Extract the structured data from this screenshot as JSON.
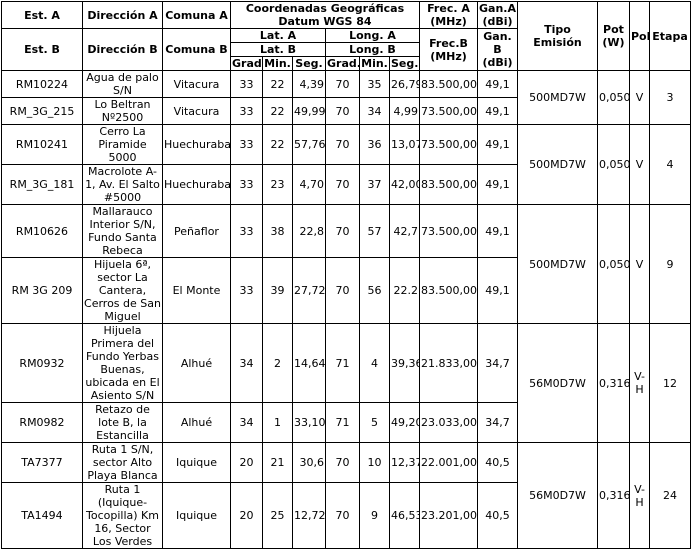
{
  "headers": {
    "est_a": "Est. A",
    "dir_a": "Dirección A",
    "comuna_a": "Comuna A",
    "coords": "Coordenadas Geográficas Datum WGS 84",
    "frec_a": "Frec. A (MHz)",
    "gan_a": "Gan.A (dBi)",
    "tipo": "Tipo Emisión",
    "pot": "Pot (W)",
    "pol": "Pol",
    "etapa": "Etapa",
    "est_b": "Est. B",
    "dir_b": "Dirección B",
    "comuna_b": "Comuna B",
    "lat_a": "Lat. A",
    "long_a": "Long. A",
    "frec_b": "Frec.B (MHz)",
    "gan_b": "Gan. B (dBi)",
    "lat_b": "Lat. B",
    "long_b": "Long. B",
    "units": [
      "Grad.",
      "Min.",
      "Seg.",
      "Grad.",
      "Min.",
      "Seg."
    ]
  },
  "groups": [
    {
      "tipo": "500MD7W",
      "pot": "0,050",
      "pol": "V",
      "etapa": "3",
      "rows": [
        [
          "RM10224",
          "Agua de palo S/N",
          "Vitacura",
          "33",
          "22",
          "4,39",
          "70",
          "35",
          "26,79",
          "83.500,00",
          "49,1"
        ],
        [
          "RM_3G_215",
          "Lo Beltran Nº2500",
          "Vitacura",
          "33",
          "22",
          "49,99",
          "70",
          "34",
          "4,99",
          "73.500,00",
          "49,1"
        ]
      ]
    },
    {
      "tipo": "500MD7W",
      "pot": "0,050",
      "pol": "V",
      "etapa": "4",
      "rows": [
        [
          "RM10241",
          "Cerro La Piramide 5000",
          "Huechuraba",
          "33",
          "22",
          "57,76",
          "70",
          "36",
          "13,07",
          "73.500,00",
          "49,1"
        ],
        [
          "RM_3G_181",
          "Macrolote A-1, Av. El Salto #5000",
          "Huechuraba",
          "33",
          "23",
          "4,70",
          "70",
          "37",
          "42,00",
          "83.500,00",
          "49,1"
        ]
      ]
    },
    {
      "tipo": "500MD7W",
      "pot": "0,050",
      "pol": "V",
      "etapa": "9",
      "rows": [
        [
          "RM10626",
          "Mallarauco Interior S/N, Fundo Santa Rebeca",
          "Peñaflor",
          "33",
          "38",
          "22,8",
          "70",
          "57",
          "42,7",
          "73.500,00",
          "49,1"
        ],
        [
          "RM 3G 209",
          "Hijuela 6ª, sector La Cantera, Cerros de San Miguel",
          "El Monte",
          "33",
          "39",
          "27,72",
          "70",
          "56",
          "22.2",
          "83.500,00",
          "49,1"
        ]
      ]
    },
    {
      "tipo": "56M0D7W",
      "pot": "0,316",
      "pol": "V-H",
      "etapa": "12",
      "rows": [
        [
          "RM0932",
          "Hijuela Primera del Fundo Yerbas Buenas, ubicada en El Asiento S/N",
          "Alhué",
          "34",
          "2",
          "14,64",
          "71",
          "4",
          "39,36",
          "21.833,00",
          "34,7"
        ],
        [
          "RM0982",
          "Retazo de lote B, la Estancilla",
          "Alhué",
          "34",
          "1",
          "33,10",
          "71",
          "5",
          "49,20",
          "23.033,00",
          "34,7"
        ]
      ]
    },
    {
      "tipo": "56M0D7W",
      "pot": "0,316",
      "pol": "V-H",
      "etapa": "24",
      "rows": [
        [
          "TA7377",
          "Ruta 1 S/N, sector Alto Playa Blanca",
          "Iquique",
          "20",
          "21",
          "30,6",
          "70",
          "10",
          "12,37",
          "22.001,00",
          "40,5"
        ],
        [
          "TA1494",
          "Ruta 1 (Iquique-Tocopilla) Km 16, Sector Los Verdes",
          "Iquique",
          "20",
          "25",
          "12,72",
          "70",
          "9",
          "46,53",
          "23.201,00",
          "40,5"
        ]
      ]
    }
  ]
}
